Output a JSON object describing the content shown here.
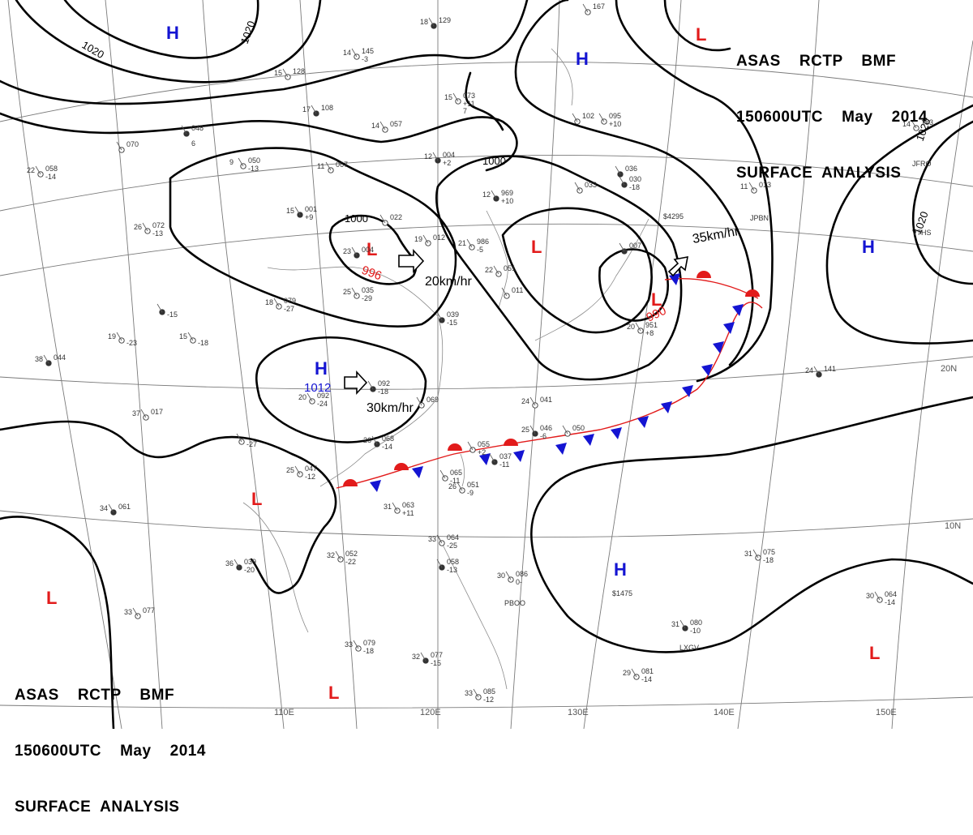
{
  "header_top": {
    "line1": "ASAS    RCTP    BMF",
    "line2": "150600UTC    May    2014",
    "line3": "SURFACE  ANALYSIS"
  },
  "header_bottom": {
    "line1": "ASAS    RCTP    BMF",
    "line2": "150600UTC    May    2014",
    "line3": "SURFACE  ANALYSIS"
  },
  "colors": {
    "high": "#1414d2",
    "low": "#e21b1b",
    "cold_front": "#1414d2",
    "warm_front": "#e21b1b",
    "isobar": "#000000",
    "grid": "#7a7a7a"
  },
  "systems": [
    {
      "type": "H",
      "pressure": ""
    },
    {
      "type": "H",
      "pressure": ""
    },
    {
      "type": "H",
      "pressure": ""
    },
    {
      "type": "H",
      "pressure": "1012"
    },
    {
      "type": "H",
      "pressure": ""
    },
    {
      "type": "L",
      "pressure": ""
    },
    {
      "type": "L",
      "pressure": "996"
    },
    {
      "type": "L",
      "pressure": ""
    },
    {
      "type": "L",
      "pressure": "990"
    },
    {
      "type": "L",
      "pressure": ""
    },
    {
      "type": "L",
      "pressure": ""
    },
    {
      "type": "L",
      "pressure": ""
    },
    {
      "type": "L",
      "pressure": ""
    }
  ],
  "isobar_labels": [
    "1020",
    "1020",
    "1020",
    "1020",
    "1000",
    "1000"
  ],
  "motion_labels": [
    "20km/hr",
    "30km/hr",
    "35km/hr"
  ],
  "grid_labels": [
    "110E",
    "120E",
    "130E",
    "140E",
    "150E",
    "20N",
    "10N"
  ],
  "stations": [
    {
      "t": "18",
      "p": "129",
      "d": "",
      "x": ""
    },
    {
      "t": "14",
      "p": "145",
      "d": "-3",
      "x": ""
    },
    {
      "t": "15",
      "p": "128",
      "d": "",
      "x": ""
    },
    {
      "t": "17",
      "p": "108",
      "d": "",
      "x": ""
    },
    {
      "t": "14",
      "p": "057",
      "d": "",
      "x": ""
    },
    {
      "t": "15",
      "p": "073",
      "d": "+11",
      "x": "7"
    },
    {
      "t": "12",
      "p": "004",
      "d": "+2",
      "x": ""
    },
    {
      "t": "9",
      "p": "050",
      "d": "-13",
      "x": ""
    },
    {
      "t": "11",
      "p": "067",
      "d": "",
      "x": ""
    },
    {
      "t": "",
      "p": "048",
      "d": "",
      "x": "6"
    },
    {
      "t": "",
      "p": "070",
      "d": "",
      "x": ""
    },
    {
      "t": "22",
      "p": "058",
      "d": "-14",
      "x": ""
    },
    {
      "t": "15",
      "p": "001",
      "d": "+9",
      "x": ""
    },
    {
      "t": "26",
      "p": "072",
      "d": "-13",
      "x": ""
    },
    {
      "t": "",
      "p": "022",
      "d": "",
      "x": ""
    },
    {
      "t": "23",
      "p": "004",
      "d": "",
      "x": ""
    },
    {
      "t": "19",
      "p": "012",
      "d": "",
      "x": ""
    },
    {
      "t": "21",
      "p": "986",
      "d": "-5",
      "x": ""
    },
    {
      "t": "12",
      "p": "969",
      "d": "+10",
      "x": ""
    },
    {
      "t": "25",
      "p": "035",
      "d": "-29",
      "x": ""
    },
    {
      "t": "18",
      "p": "079",
      "d": "-27",
      "x": ""
    },
    {
      "t": "",
      "p": "",
      "d": "-15",
      "x": ""
    },
    {
      "t": "15",
      "p": "",
      "d": "-18",
      "x": ""
    },
    {
      "t": "19",
      "p": "",
      "d": "-23",
      "x": ""
    },
    {
      "t": "38",
      "p": "044",
      "d": "",
      "x": ""
    },
    {
      "t": "37",
      "p": "017",
      "d": "",
      "x": ""
    },
    {
      "t": "20",
      "p": "092",
      "d": "-24",
      "x": ""
    },
    {
      "t": "",
      "p": "092",
      "d": "-18",
      "x": ""
    },
    {
      "t": "",
      "p": "069",
      "d": "",
      "x": ""
    },
    {
      "t": "24",
      "p": "041",
      "d": "",
      "x": ""
    },
    {
      "t": "26",
      "p": "068",
      "d": "-14",
      "x": ""
    },
    {
      "t": "",
      "p": "",
      "d": "-27",
      "x": ""
    },
    {
      "t": "25",
      "p": "047",
      "d": "-12",
      "x": ""
    },
    {
      "t": "34",
      "p": "061",
      "d": "",
      "x": ""
    },
    {
      "t": "31",
      "p": "063",
      "d": "+11",
      "x": ""
    },
    {
      "t": "32",
      "p": "052",
      "d": "-22",
      "x": ""
    },
    {
      "t": "36",
      "p": "039",
      "d": "-20",
      "x": ""
    },
    {
      "t": "33",
      "p": "077",
      "d": "",
      "x": ""
    },
    {
      "t": "33",
      "p": "079",
      "d": "-18",
      "x": ""
    },
    {
      "t": "32",
      "p": "077",
      "d": "-15",
      "x": ""
    },
    {
      "t": "33",
      "p": "085",
      "d": "-12",
      "x": ""
    },
    {
      "t": "33",
      "p": "064",
      "d": "-25",
      "x": ""
    },
    {
      "t": "",
      "p": "058",
      "d": "-13",
      "x": ""
    },
    {
      "t": "30",
      "p": "086",
      "d": "0-",
      "x": ""
    },
    {
      "t": "31",
      "p": "075",
      "d": "-18",
      "x": ""
    },
    {
      "t": "31",
      "p": "080",
      "d": "-10",
      "x": ""
    },
    {
      "t": "29",
      "p": "081",
      "d": "-14",
      "x": ""
    },
    {
      "t": "30",
      "p": "064",
      "d": "-14",
      "x": ""
    },
    {
      "t": "24",
      "p": "141",
      "d": "",
      "x": ""
    },
    {
      "t": "14",
      "p": "183",
      "d": "",
      "x": ""
    },
    {
      "t": "11",
      "p": "013",
      "d": "",
      "x": ""
    },
    {
      "t": "",
      "p": "030",
      "d": "-18",
      "x": ""
    },
    {
      "t": "",
      "p": "095",
      "d": "+10",
      "x": ""
    },
    {
      "t": "",
      "p": "033",
      "d": "",
      "x": ""
    },
    {
      "t": "",
      "p": "036",
      "d": "",
      "x": ""
    },
    {
      "t": "",
      "p": "102",
      "d": "",
      "x": ""
    },
    {
      "t": "",
      "p": "167",
      "d": "",
      "x": ""
    },
    {
      "t": "25",
      "p": "046",
      "d": "-6",
      "x": ""
    },
    {
      "t": "",
      "p": "050",
      "d": "",
      "x": ""
    },
    {
      "t": "",
      "p": "055",
      "d": "+2",
      "x": ""
    },
    {
      "t": "",
      "p": "037",
      "d": "-11",
      "x": ""
    },
    {
      "t": "",
      "p": "065",
      "d": "-11",
      "x": ""
    },
    {
      "t": "26",
      "p": "051",
      "d": "-9",
      "x": ""
    },
    {
      "t": "",
      "p": "039",
      "d": "-15",
      "x": ""
    },
    {
      "t": "22",
      "p": "051",
      "d": "",
      "x": ""
    },
    {
      "t": "",
      "p": "011",
      "d": "",
      "x": ""
    },
    {
      "t": "",
      "p": "007",
      "d": "",
      "x": ""
    },
    {
      "t": "20",
      "p": "951",
      "d": "+8",
      "x": ""
    }
  ],
  "station_ids": [
    "JFRO",
    "V7HS",
    "JPBN",
    "$4295",
    "PBOO",
    "$1475",
    "LXGV"
  ]
}
